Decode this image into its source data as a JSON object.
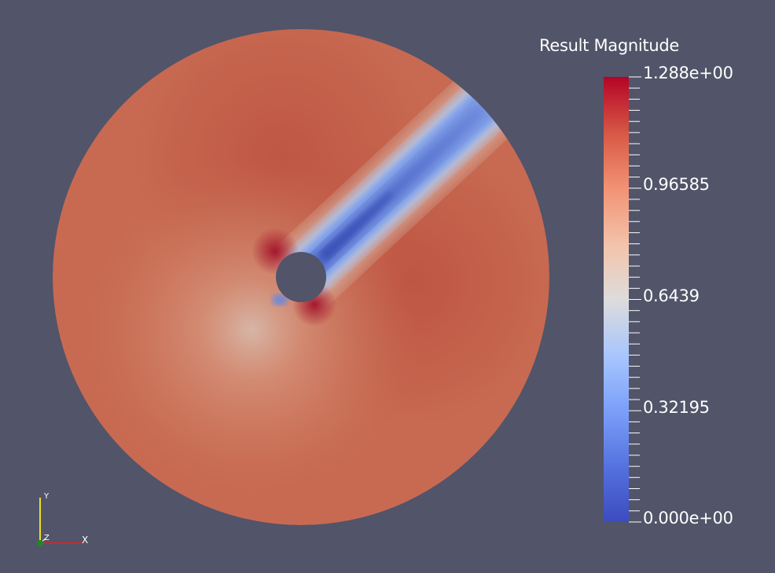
{
  "legend": {
    "title": "Result Magnitude",
    "ticks": [
      {
        "label": "1.288e+00",
        "value": 1.288
      },
      {
        "label": "0.96585",
        "value": 0.96585
      },
      {
        "label": "0.6439",
        "value": 0.6439
      },
      {
        "label": "0.32195",
        "value": 0.32195
      },
      {
        "label": "0.000e+00",
        "value": 0.0
      }
    ],
    "range": [
      0.0,
      1.288
    ],
    "colormap": [
      "#3b4cc0",
      "#6788ee",
      "#9abbff",
      "#c9d7f0",
      "#dddcdc",
      "#f2c8b5",
      "#f7a889",
      "#e26952",
      "#b40426"
    ]
  },
  "orientation_axes": {
    "x_label": "X",
    "y_label": "Y",
    "z_label": "Z",
    "x_color": "#e02020",
    "y_color": "#e8e020",
    "z_color": "#1e8a1e"
  },
  "colors": {
    "background": "#525469",
    "field_base": "#c86a52"
  }
}
